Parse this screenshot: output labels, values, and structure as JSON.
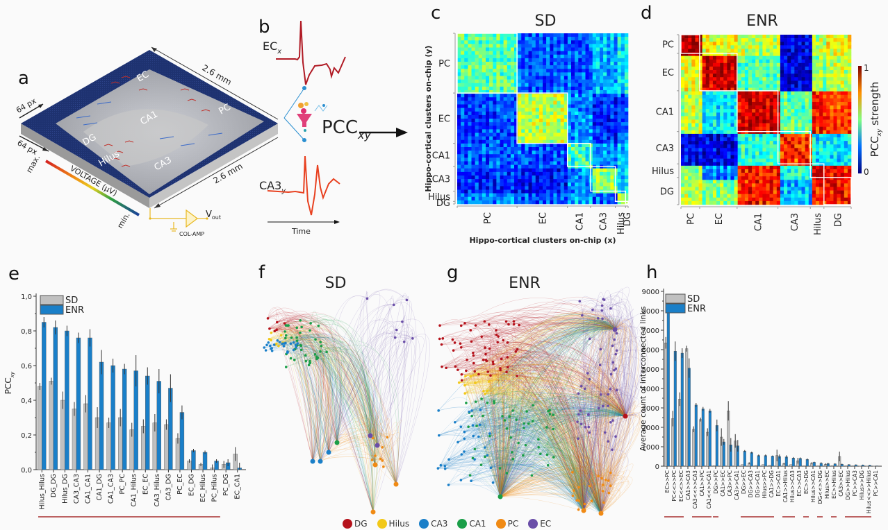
{
  "panels": {
    "a": {
      "letter": "a",
      "dim_top": "2.6 mm",
      "dim_bottom": "2.6 mm",
      "px_top": "64 px",
      "px_left": "64 px",
      "regions": [
        "EC",
        "CA1",
        "PC",
        "DG",
        "Hilus",
        "CA3"
      ],
      "voltage_label": "VOLTAGE (μV)",
      "voltage_max": "max.",
      "voltage_min": "min.",
      "amp_label": "COL-AMP",
      "vout_label": "V",
      "vout_sub": "out",
      "colors": {
        "chip_blue": "#1d2f6b",
        "chip_side": "#b0b0b0",
        "amp": "#e8b820"
      }
    },
    "b": {
      "letter": "b",
      "signal_x": "EC",
      "signal_x_sub": "x",
      "signal_y": "CA3",
      "signal_y_sub": "y",
      "pcc_label": "PCC",
      "pcc_sub": "xy",
      "time_label": "Time",
      "colors": {
        "ec": "#b01a24",
        "ca3": "#e8401f",
        "link": "#2a8fd0"
      }
    },
    "c": {
      "letter": "c",
      "title": "SD"
    },
    "d": {
      "letter": "d",
      "title": "ENR",
      "colorbar_label": "PCC",
      "colorbar_sub": "xy",
      "colorbar_suffix": " strength",
      "colorbar_max": "1",
      "colorbar_min": "0"
    },
    "e": {
      "letter": "e"
    },
    "f": {
      "letter": "f",
      "title": "SD"
    },
    "g": {
      "letter": "g",
      "title": "ENR"
    },
    "h": {
      "letter": "h"
    }
  },
  "heatmap_axes": {
    "xlabel": "Hippo-cortical clusters on-chip (x)",
    "ylabel": "Hippo-cortical clusters on-chip (y)",
    "sd_regions": [
      "PC",
      "EC",
      "CA1",
      "CA3",
      "Hilus",
      "DG"
    ],
    "enr_regions": [
      "PC",
      "EC",
      "CA1",
      "CA3",
      "Hilus",
      "DG"
    ]
  },
  "network_legend": [
    {
      "label": "DG",
      "color": "#b5121b"
    },
    {
      "label": "Hilus",
      "color": "#f2c818"
    },
    {
      "label": "CA3",
      "color": "#1a7fc8"
    },
    {
      "label": "CA1",
      "color": "#1a9e48"
    },
    {
      "label": "PC",
      "color": "#f08a14"
    },
    {
      "label": "EC",
      "color": "#6a4ea8"
    }
  ],
  "chart_data": [
    {
      "id": "e",
      "type": "bar",
      "title": "",
      "xlabel": "",
      "ylabel": "PCC",
      "ylabel_sub": "xy",
      "ylim": [
        0,
        1.0
      ],
      "yticks": [
        "0,0",
        "0,2",
        "0,4",
        "0,6",
        "0,8",
        "1,0"
      ],
      "ytick_values": [
        0,
        0.2,
        0.4,
        0.6,
        0.8,
        1.0
      ],
      "legend": "top-left",
      "categories": [
        "Hilus_Hilus",
        "DG_DG",
        "Hilus_DG",
        "CA3_CA3",
        "CA1_CA1",
        "CA1_DG",
        "CA1_CA3",
        "PC_PC",
        "CA1_Hilus",
        "EC_EC",
        "CA3_Hilus",
        "CA3_DG",
        "PC_EC",
        "EC_DG",
        "EC_Hilus",
        "PC_Hilus",
        "PC_DG",
        "EC_CA1"
      ],
      "series": [
        {
          "name": "SD",
          "color": "#c0c0c0",
          "values": [
            0.48,
            0.51,
            0.4,
            0.35,
            0.38,
            0.3,
            0.27,
            0.3,
            0.23,
            0.25,
            0.27,
            0.26,
            0.18,
            0.05,
            0.03,
            0.01,
            0.03,
            0.09
          ],
          "errors": [
            0.02,
            0.02,
            0.05,
            0.04,
            0.05,
            0.06,
            0.03,
            0.05,
            0.04,
            0.04,
            0.05,
            0.03,
            0.03,
            0.01,
            0.01,
            0.02,
            0.02,
            0.04
          ]
        },
        {
          "name": "ENR",
          "color": "#1a7fc8",
          "values": [
            0.85,
            0.82,
            0.8,
            0.76,
            0.76,
            0.62,
            0.6,
            0.58,
            0.57,
            0.54,
            0.51,
            0.47,
            0.33,
            0.11,
            0.1,
            0.05,
            0.04,
            0.01
          ],
          "errors": [
            0.03,
            0.04,
            0.03,
            0.03,
            0.05,
            0.07,
            0.04,
            0.03,
            0.09,
            0.05,
            0.07,
            0.08,
            0.04,
            0.01,
            0.01,
            0.01,
            0.02,
            0.03
          ]
        }
      ],
      "underline_categories": 16
    },
    {
      "id": "h",
      "type": "bar",
      "title": "",
      "xlabel": "",
      "ylabel": "Average count of interconnected links",
      "ylim": [
        0,
        9000
      ],
      "yticks": [
        "0",
        "1000",
        "2000",
        "3000",
        "4000",
        "5000",
        "6000",
        "7000",
        "8000",
        "9000"
      ],
      "ytick_values": [
        0,
        1000,
        2000,
        3000,
        4000,
        5000,
        6000,
        7000,
        8000,
        9000
      ],
      "legend": "top-left",
      "categories": [
        "EC>>PC",
        "PC<<>>PC",
        "EC<<>>EC",
        "CA1>>CA3",
        "CA3<<>>CA3",
        "CA1>>PC",
        "CA1<<>>CA1",
        "DG>>PC",
        "CA1>>EC",
        "CA3>>PC",
        "CA3>>CA1",
        "DG>>EC",
        "DG>>CA3",
        "DG>>CA1",
        "Hilus>>PC",
        "CA1>>DG",
        "EC>>CA1",
        "CA1>>Hilus",
        "Hilus>>CA3",
        "EC>>CA3",
        "EC>>DG",
        "Hilus>>CA1",
        "DG<<>>DG",
        "Hilus>>EC",
        "EC>>Hilus",
        "CA3>>EC",
        "DG>>Hilus",
        "PC>>CA3",
        "Hilus>>DG",
        "Hilus<<>>Hilus",
        "PC>>CA1"
      ],
      "series": [
        {
          "name": "SD",
          "color": "#c0c0c0",
          "values": [
            6350,
            2450,
            3450,
            6050,
            1900,
            2400,
            1750,
            30,
            1500,
            2850,
            1300,
            80,
            150,
            50,
            80,
            60,
            550,
            130,
            80,
            280,
            20,
            150,
            20,
            100,
            30,
            500,
            20,
            20,
            10,
            10,
            10
          ],
          "errors": [
            300,
            400,
            350,
            150,
            150,
            100,
            200,
            0,
            450,
            500,
            350,
            0,
            50,
            0,
            0,
            0,
            300,
            50,
            0,
            150,
            0,
            50,
            0,
            50,
            0,
            250,
            0,
            0,
            0,
            0,
            0
          ]
        },
        {
          "name": "ENR",
          "color": "#1a7fc8",
          "values": [
            8450,
            5920,
            5820,
            5050,
            3150,
            2950,
            2850,
            2100,
            1250,
            1100,
            1050,
            780,
            700,
            550,
            550,
            520,
            500,
            480,
            420,
            400,
            350,
            200,
            150,
            130,
            120,
            100,
            80,
            70,
            60,
            50,
            20
          ],
          "errors": [
            250,
            500,
            250,
            500,
            100,
            100,
            100,
            300,
            150,
            350,
            300,
            50,
            50,
            50,
            50,
            30,
            100,
            80,
            50,
            50,
            50,
            30,
            50,
            50,
            30,
            30,
            20,
            20,
            20,
            20,
            0
          ]
        }
      ],
      "underline_groups": [
        [
          0,
          2
        ],
        [
          4,
          6
        ],
        [
          7,
          7
        ],
        [
          11,
          15
        ],
        [
          17,
          18
        ],
        [
          20,
          20
        ],
        [
          22,
          22
        ],
        [
          24,
          24
        ],
        [
          26,
          29
        ]
      ]
    }
  ]
}
